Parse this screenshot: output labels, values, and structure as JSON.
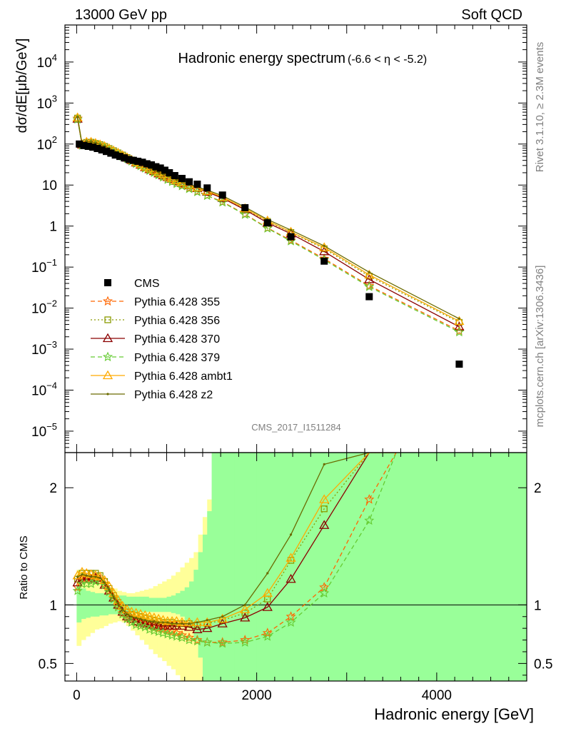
{
  "header": {
    "left": "13000 GeV pp",
    "right": "Soft QCD"
  },
  "side_text": {
    "rivet": "Rivet 3.1.10, ≥ 2.3M events",
    "source": "mcplots.cern.ch [arXiv:1306.3436]"
  },
  "analysis_id": "CMS_2017_I1511284",
  "chart_data": [
    {
      "type": "line",
      "title": "Hadronic energy spectrum",
      "subtitle": "(-6.6 < η < -5.2)",
      "ylabel": "dσ/dE[μb/GeV]",
      "yscale": "log",
      "ylim": [
        3e-06,
        80000
      ],
      "xlim": [
        -130,
        5000
      ],
      "y_tick_labels": [
        "10^-5",
        "10^-4",
        "10^-3",
        "10^-2",
        "10^-1",
        "1",
        "10",
        "10^2",
        "10^3",
        "10^4"
      ],
      "legend_position": "bottom-left",
      "cms": {
        "name": "CMS",
        "color": "#000000",
        "x": [
          30,
          80,
          130,
          180,
          230,
          280,
          330,
          380,
          430,
          480,
          530,
          580,
          630,
          680,
          730,
          780,
          830,
          880,
          930,
          980,
          1030,
          1090,
          1170,
          1250,
          1340,
          1450,
          1620,
          1870,
          2120,
          2380,
          2750,
          3250,
          4250
        ],
        "y": [
          100,
          92,
          88,
          84,
          78,
          72,
          66,
          60,
          54,
          50,
          46,
          42,
          40,
          38,
          36,
          33,
          31,
          28,
          26,
          23,
          20,
          17,
          14.5,
          12,
          10.5,
          8.5,
          5.7,
          2.8,
          1.2,
          0.55,
          0.14,
          0.019,
          0.00043
        ]
      },
      "mc_x": [
        10,
        60,
        110,
        160,
        210,
        260,
        310,
        360,
        410,
        460,
        510,
        560,
        610,
        660,
        710,
        760,
        810,
        860,
        910,
        960,
        1010,
        1060,
        1110,
        1170,
        1250,
        1340,
        1450,
        1620,
        1870,
        2120,
        2380,
        2750,
        3250,
        4250
      ],
      "series": [
        {
          "name": "Pythia 6.428 355",
          "color": "#ff6600",
          "marker": "star",
          "dash": "6,4",
          "y": [
            420,
            95,
            104,
            104,
            99,
            93,
            85,
            76,
            68,
            60,
            53,
            46,
            40,
            35,
            31,
            27,
            24,
            21,
            18.5,
            16.5,
            14.5,
            13,
            11.5,
            10,
            8.5,
            7,
            5.6,
            3.9,
            1.95,
            0.9,
            0.45,
            0.16,
            0.035,
            0.0028
          ]
        },
        {
          "name": "Pythia 6.428 356",
          "color": "#8a9a00",
          "marker": "square",
          "dash": "2,3",
          "y": [
            430,
            98,
            110,
            111,
            104,
            97,
            88,
            78,
            69,
            61,
            54,
            47,
            41,
            36,
            32,
            28,
            25,
            22.5,
            20,
            18,
            16,
            14.5,
            13,
            11.5,
            10,
            8.5,
            7,
            5,
            2.6,
            1.3,
            0.7,
            0.28,
            0.06,
            0.0045
          ]
        },
        {
          "name": "Pythia 6.428 370",
          "color": "#8b0000",
          "marker": "triangle",
          "dash": "",
          "y": [
            410,
            96,
            107,
            108,
            101,
            94,
            85,
            76,
            67,
            59,
            52,
            46,
            40,
            35,
            31,
            27,
            24,
            21.5,
            19,
            17,
            15.5,
            14,
            12.5,
            11,
            9.7,
            8.3,
            6.8,
            4.8,
            2.5,
            1.2,
            0.65,
            0.24,
            0.05,
            0.0035
          ]
        },
        {
          "name": "Pythia 6.428 379",
          "color": "#66cc33",
          "marker": "star",
          "dash": "6,4",
          "y": [
            400,
            92,
            100,
            100,
            95,
            89,
            81,
            73,
            65,
            57,
            50,
            44,
            38,
            33,
            29,
            25.5,
            22.5,
            20,
            17.5,
            15.5,
            13.5,
            12,
            10.7,
            9.5,
            8.1,
            6.8,
            5.5,
            3.8,
            1.9,
            0.88,
            0.43,
            0.15,
            0.033,
            0.0026
          ]
        },
        {
          "name": "Pythia 6.428 ambt1",
          "color": "#ffaa00",
          "marker": "triangle",
          "dash": "",
          "y": [
            440,
            99,
            112,
            112,
            105,
            97,
            88,
            78,
            69,
            61,
            53,
            47,
            41,
            36,
            32,
            28,
            25,
            22.5,
            20,
            18,
            16,
            14.5,
            13,
            11.5,
            10,
            8.6,
            7.1,
            5.1,
            2.7,
            1.35,
            0.72,
            0.3,
            0.065,
            0.0048
          ]
        },
        {
          "name": "Pythia 6.428 z2",
          "color": "#6b6b00",
          "marker": "dot",
          "dash": "",
          "y": [
            450,
            100,
            113,
            113,
            106,
            98,
            89,
            79,
            70,
            62,
            54,
            48,
            42,
            37,
            33,
            29,
            26,
            23,
            20.5,
            18.5,
            16.5,
            15,
            13.5,
            12,
            10.5,
            9,
            7.5,
            5.5,
            2.9,
            1.45,
            0.8,
            0.33,
            0.075,
            0.0055
          ]
        }
      ]
    },
    {
      "type": "line",
      "ylabel": "Ratio to CMS",
      "xlabel": "Hadronic energy [GeV]",
      "ylim": [
        0.35,
        2.3
      ],
      "xlim": [
        -130,
        5000
      ],
      "x_tick_labels": [
        "0",
        "2000",
        "4000"
      ],
      "y_tick_labels": [
        "0.5",
        "1",
        "2"
      ],
      "reference_line": 1,
      "band_colors": {
        "stat": "#99ff99",
        "syst": "#ffff99"
      },
      "band_edges": [
        0,
        50,
        100,
        150,
        200,
        250,
        300,
        350,
        400,
        450,
        500,
        550,
        600,
        650,
        700,
        750,
        800,
        850,
        900,
        950,
        1000,
        1050,
        1100,
        1150,
        1200,
        1250,
        1300,
        1350,
        1400,
        1450,
        1500,
        1750,
        2000,
        2250,
        2500,
        5000
      ],
      "stat_band": {
        "lo": [
          0.85,
          0.88,
          0.89,
          0.9,
          0.9,
          0.91,
          0.91,
          0.92,
          0.92,
          0.92,
          0.93,
          0.93,
          0.93,
          0.93,
          0.94,
          0.94,
          0.94,
          0.94,
          0.94,
          0.94,
          0.94,
          0.93,
          0.92,
          0.9,
          0.87,
          0.8,
          0.7,
          0.55,
          0.35,
          0.35,
          0.35,
          0.35,
          0.35,
          0.35,
          0.35
        ],
        "hi": [
          1.17,
          1.14,
          1.12,
          1.11,
          1.1,
          1.1,
          1.09,
          1.09,
          1.08,
          1.08,
          1.08,
          1.07,
          1.07,
          1.07,
          1.07,
          1.07,
          1.06,
          1.06,
          1.06,
          1.06,
          1.07,
          1.08,
          1.1,
          1.12,
          1.15,
          1.2,
          1.3,
          1.45,
          1.6,
          1.8,
          2.3,
          2.3,
          2.3,
          2.3,
          2.3
        ]
      },
      "syst_band": {
        "lo": [
          0.65,
          0.7,
          0.73,
          0.76,
          0.79,
          0.8,
          0.82,
          0.84,
          0.85,
          0.86,
          0.85,
          0.82,
          0.78,
          0.74,
          0.7,
          0.66,
          0.62,
          0.58,
          0.55,
          0.52,
          0.48,
          0.45,
          0.4,
          0.35,
          0.35,
          0.35,
          0.35,
          0.35,
          0.35,
          0.35,
          0.35,
          0.35,
          0.35,
          0.35,
          0.35
        ],
        "hi": [
          1.3,
          1.28,
          1.25,
          1.22,
          1.2,
          1.18,
          1.17,
          1.15,
          1.14,
          1.12,
          1.11,
          1.1,
          1.1,
          1.11,
          1.12,
          1.13,
          1.14,
          1.16,
          1.18,
          1.2,
          1.22,
          1.25,
          1.28,
          1.32,
          1.36,
          1.4,
          1.45,
          1.6,
          1.75,
          1.9,
          2.0,
          2.3,
          2.3,
          2.25,
          2.3
        ]
      },
      "ratio_x": [
        10,
        60,
        110,
        160,
        210,
        260,
        310,
        360,
        410,
        460,
        510,
        560,
        610,
        660,
        710,
        760,
        810,
        860,
        910,
        960,
        1010,
        1060,
        1110,
        1170,
        1250,
        1340,
        1450,
        1620,
        1870,
        2120,
        2380,
        2750,
        3250,
        3550
      ],
      "series": [
        {
          "name": "Pythia 6.428 355",
          "y": [
            1.15,
            1.22,
            1.22,
            1.22,
            1.23,
            1.22,
            1.18,
            1.12,
            1.06,
            0.99,
            0.93,
            0.89,
            0.87,
            0.85,
            0.84,
            0.83,
            0.82,
            0.81,
            0.8,
            0.79,
            0.78,
            0.77,
            0.76,
            0.74,
            0.72,
            0.7,
            0.68,
            0.68,
            0.7,
            0.76,
            0.9,
            1.15,
            1.9,
            2.3
          ]
        },
        {
          "name": "Pythia 6.428 356",
          "y": [
            1.22,
            1.27,
            1.27,
            1.27,
            1.27,
            1.25,
            1.2,
            1.14,
            1.08,
            1.02,
            0.97,
            0.94,
            0.92,
            0.91,
            0.9,
            0.89,
            0.88,
            0.87,
            0.86,
            0.85,
            0.85,
            0.85,
            0.84,
            0.84,
            0.84,
            0.83,
            0.84,
            0.87,
            0.93,
            1.05,
            1.38,
            1.82,
            2.3,
            2.3
          ]
        },
        {
          "name": "Pythia 6.428 370",
          "y": [
            1.19,
            1.22,
            1.22,
            1.22,
            1.23,
            1.21,
            1.17,
            1.12,
            1.06,
            1.0,
            0.94,
            0.9,
            0.88,
            0.86,
            0.85,
            0.84,
            0.83,
            0.83,
            0.82,
            0.82,
            0.82,
            0.82,
            0.82,
            0.82,
            0.81,
            0.79,
            0.8,
            0.84,
            0.89,
            0.98,
            1.22,
            1.68,
            2.3,
            2.3
          ]
        },
        {
          "name": "Pythia 6.428 379",
          "y": [
            1.12,
            1.18,
            1.18,
            1.18,
            1.2,
            1.2,
            1.17,
            1.11,
            1.05,
            0.98,
            0.92,
            0.88,
            0.85,
            0.83,
            0.82,
            0.81,
            0.79,
            0.78,
            0.77,
            0.76,
            0.75,
            0.74,
            0.73,
            0.72,
            0.7,
            0.69,
            0.68,
            0.67,
            0.68,
            0.73,
            0.85,
            1.1,
            1.72,
            2.3
          ]
        },
        {
          "name": "Pythia 6.428 ambt1",
          "y": [
            1.25,
            1.28,
            1.27,
            1.26,
            1.25,
            1.24,
            1.21,
            1.16,
            1.1,
            1.04,
            0.99,
            0.96,
            0.94,
            0.93,
            0.92,
            0.91,
            0.9,
            0.89,
            0.88,
            0.87,
            0.86,
            0.86,
            0.86,
            0.85,
            0.85,
            0.85,
            0.85,
            0.88,
            0.96,
            1.1,
            1.4,
            1.9,
            2.3,
            2.3
          ]
        },
        {
          "name": "Pythia 6.428 z2",
          "y": [
            1.24,
            1.26,
            1.25,
            1.24,
            1.24,
            1.23,
            1.19,
            1.13,
            1.07,
            1.01,
            0.96,
            0.92,
            0.9,
            0.89,
            0.88,
            0.87,
            0.86,
            0.86,
            0.85,
            0.85,
            0.85,
            0.84,
            0.84,
            0.84,
            0.84,
            0.85,
            0.87,
            0.9,
            1.0,
            1.27,
            1.6,
            2.2,
            2.3,
            2.3
          ]
        }
      ]
    }
  ]
}
